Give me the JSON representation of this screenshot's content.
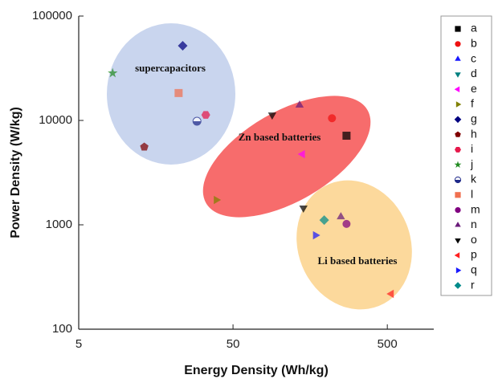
{
  "chart_data": {
    "type": "scatter",
    "xlabel": "Energy Density (Wh/kg)",
    "ylabel": "Power Density (W/kg)",
    "xlim": [
      5,
      1000
    ],
    "ylim": [
      100,
      100000
    ],
    "xticks": [
      5,
      50,
      500
    ],
    "yticks": [
      100,
      1000,
      10000,
      100000
    ],
    "xscale": "log",
    "yscale": "log",
    "legend": "right",
    "annotations": [
      "supercapacitors",
      "Zn based batteries",
      "Li based batteries"
    ],
    "series": [
      {
        "name": "a",
        "color": "#000000",
        "marker": "square",
        "x": [
          272
        ],
        "y": [
          7140
        ]
      },
      {
        "name": "b",
        "color": "#ee1111",
        "marker": "circle",
        "x": [
          219
        ],
        "y": [
          10500
        ]
      },
      {
        "name": "c",
        "color": "#1a1aff",
        "marker": "triangle-up",
        "x": [],
        "y": []
      },
      {
        "name": "d",
        "color": "#008080",
        "marker": "triangle-down",
        "x": [],
        "y": []
      },
      {
        "name": "e",
        "color": "#ff00ff",
        "marker": "triangle-left",
        "x": [
          141
        ],
        "y": [
          4750
        ]
      },
      {
        "name": "f",
        "color": "#808000",
        "marker": "triangle-right",
        "x": [
          38.9
        ],
        "y": [
          1730
        ]
      },
      {
        "name": "g",
        "color": "#000080",
        "marker": "diamond",
        "x": [
          23.6
        ],
        "y": [
          51900
        ]
      },
      {
        "name": "h",
        "color": "#800000",
        "marker": "pentagon",
        "x": [
          13.3
        ],
        "y": [
          5570
        ]
      },
      {
        "name": "i",
        "color": "#e6194b",
        "marker": "hexagon",
        "x": [
          33.3
        ],
        "y": [
          11300
        ]
      },
      {
        "name": "j",
        "color": "#228b22",
        "marker": "star",
        "x": [
          8.3
        ],
        "y": [
          28400
        ]
      },
      {
        "name": "k",
        "color": "#1f2a8a",
        "marker": "half-circle",
        "x": [
          29.2
        ],
        "y": [
          9820
        ]
      },
      {
        "name": "l",
        "color": "#f07050",
        "marker": "square",
        "x": [
          22.2
        ],
        "y": [
          18300
        ]
      },
      {
        "name": "m",
        "color": "#800080",
        "marker": "circle",
        "x": [
          272
        ],
        "y": [
          1020
        ]
      },
      {
        "name": "n",
        "color": "#6a1b7a",
        "marker": "triangle-up",
        "x": [
          135,
          250
        ],
        "y": [
          14000,
          1190
        ]
      },
      {
        "name": "o",
        "color": "#000000",
        "marker": "triangle-down",
        "x": [
          89.7,
          143
        ],
        "y": [
          11300,
          1450
        ]
      },
      {
        "name": "p",
        "color": "#ff2020",
        "marker": "triangle-left",
        "x": [
          531
        ],
        "y": [
          218
        ]
      },
      {
        "name": "q",
        "color": "#1a1aff",
        "marker": "triangle-right",
        "x": [
          171
        ],
        "y": [
          794
        ]
      },
      {
        "name": "r",
        "color": "#008b8b",
        "marker": "diamond",
        "x": [
          195
        ],
        "y": [
          1110
        ]
      }
    ]
  }
}
